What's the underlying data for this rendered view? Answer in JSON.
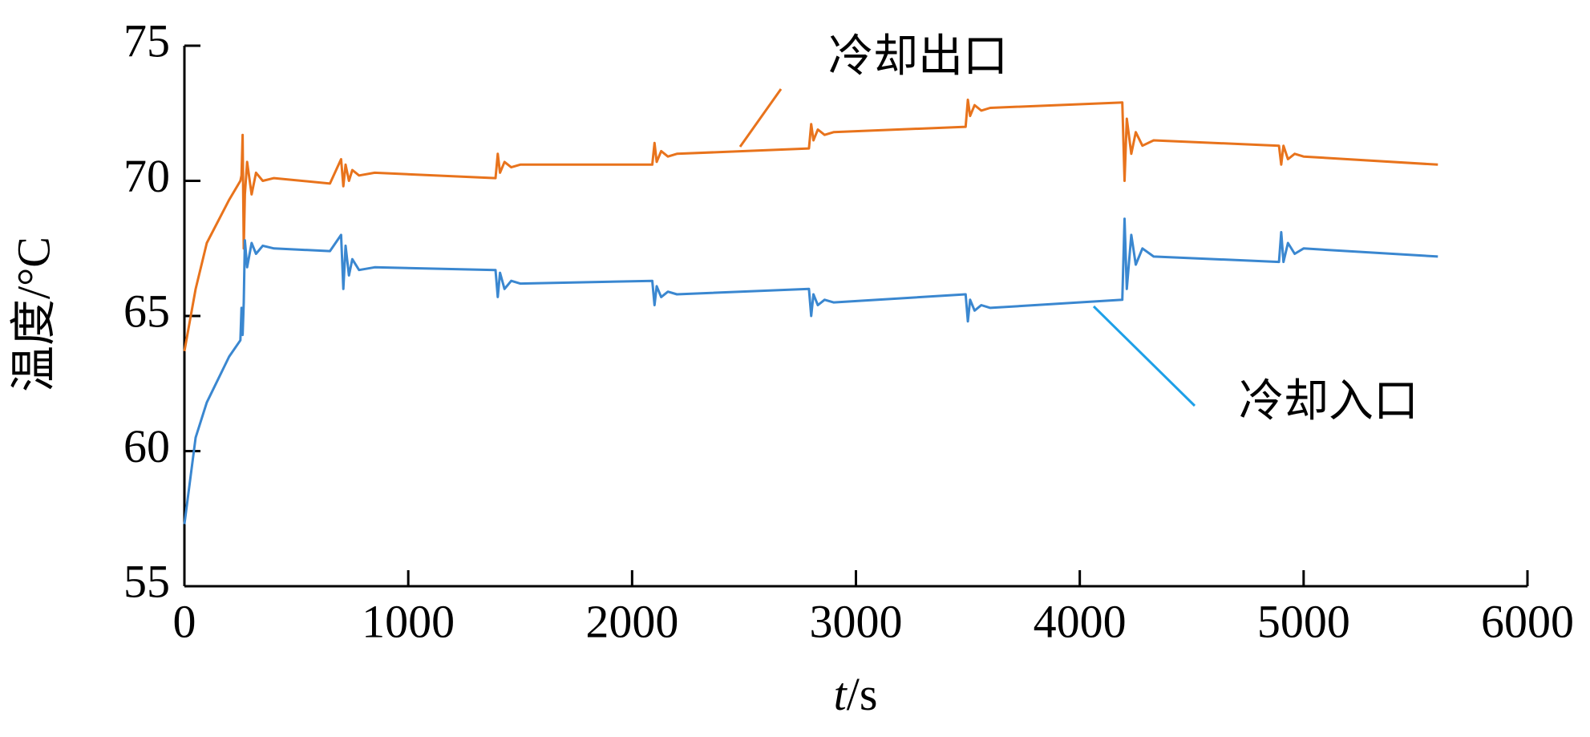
{
  "chart_data": {
    "type": "line",
    "x_label": "t/s",
    "y_label": "温度/°C",
    "x": [
      0,
      50,
      100,
      200,
      250,
      255,
      260,
      265,
      270,
      280,
      300,
      320,
      350,
      400,
      650,
      700,
      710,
      720,
      735,
      750,
      780,
      850,
      1390,
      1400,
      1410,
      1430,
      1460,
      1500,
      2090,
      2100,
      2110,
      2130,
      2160,
      2200,
      2790,
      2800,
      2810,
      2830,
      2860,
      2900,
      3490,
      3500,
      3510,
      3530,
      3560,
      3600,
      4190,
      4200,
      4210,
      4230,
      4250,
      4280,
      4330,
      4890,
      4900,
      4910,
      4930,
      4960,
      5000,
      5600
    ],
    "series": [
      {
        "name": "冷却出口",
        "color": "#e8731c",
        "values": [
          63.7,
          66,
          67.7,
          69.3,
          70.0,
          70.2,
          71.7,
          67.5,
          69.5,
          70.7,
          69.5,
          70.3,
          70.0,
          70.1,
          69.9,
          70.8,
          69.8,
          70.6,
          70.0,
          70.4,
          70.2,
          70.3,
          70.1,
          71.0,
          70.3,
          70.7,
          70.5,
          70.6,
          70.6,
          71.4,
          70.7,
          71.1,
          70.9,
          71.0,
          71.2,
          72.1,
          71.5,
          71.9,
          71.7,
          71.8,
          72.0,
          73.0,
          72.4,
          72.8,
          72.6,
          72.7,
          72.9,
          70.0,
          72.3,
          71.0,
          71.8,
          71.3,
          71.5,
          71.3,
          70.6,
          71.3,
          70.8,
          71.0,
          70.9,
          70.6
        ]
      },
      {
        "name": "冷却入口",
        "color": "#3a87d0",
        "values": [
          57.3,
          60.5,
          61.8,
          63.5,
          64.1,
          65.3,
          64.3,
          65.5,
          67.8,
          66.8,
          67.7,
          67.3,
          67.6,
          67.5,
          67.4,
          68.0,
          66.0,
          67.6,
          66.5,
          67.1,
          66.7,
          66.8,
          66.7,
          65.7,
          66.6,
          66.0,
          66.3,
          66.2,
          66.3,
          65.4,
          66.1,
          65.7,
          65.9,
          65.8,
          66.0,
          65.0,
          65.8,
          65.4,
          65.6,
          65.5,
          65.8,
          64.8,
          65.6,
          65.2,
          65.4,
          65.3,
          65.6,
          68.6,
          66.0,
          68.0,
          66.9,
          67.5,
          67.2,
          67.0,
          68.1,
          67.0,
          67.7,
          67.3,
          67.5,
          67.2
        ]
      }
    ],
    "xlim": [
      0,
      6000
    ],
    "xticks": [
      0,
      1000,
      2000,
      3000,
      4000,
      5000,
      6000
    ],
    "ylim": [
      55,
      75
    ],
    "yticks": [
      55,
      60,
      65,
      70,
      75
    ],
    "grid": false
  }
}
